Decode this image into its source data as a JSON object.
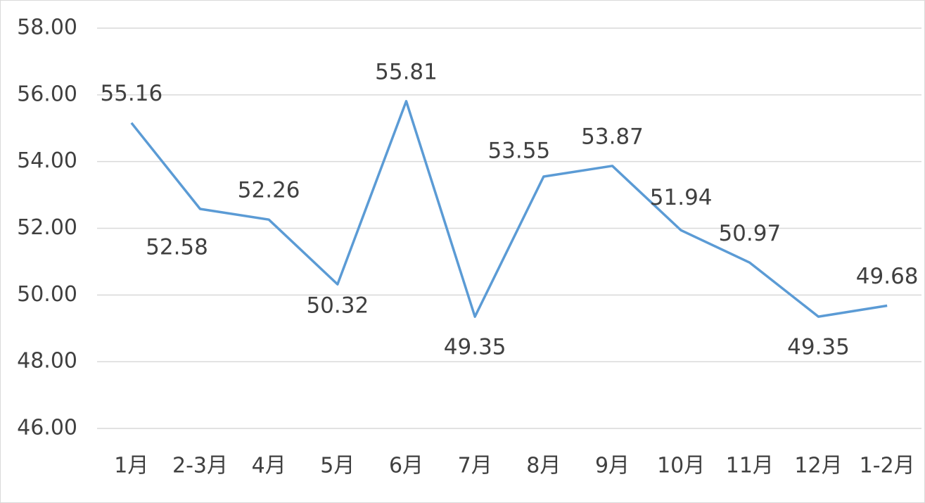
{
  "chart_data": {
    "type": "line",
    "categories": [
      "1月",
      "2-3月",
      "4月",
      "5月",
      "6月",
      "7月",
      "8月",
      "9月",
      "10月",
      "11月",
      "12月",
      "1-2月"
    ],
    "values": [
      55.16,
      52.58,
      52.26,
      50.32,
      55.81,
      49.35,
      53.55,
      53.87,
      51.94,
      50.97,
      49.35,
      49.68
    ],
    "color": "#5b9bd5",
    "ylim": [
      46,
      58
    ],
    "yticks": [
      {
        "value": 46,
        "label": "46.00"
      },
      {
        "value": 48,
        "label": "48.00"
      },
      {
        "value": 50,
        "label": "50.00"
      },
      {
        "value": 52,
        "label": "52.00"
      },
      {
        "value": 54,
        "label": "54.00"
      },
      {
        "value": 56,
        "label": "56.00"
      },
      {
        "value": 58,
        "label": "58.00"
      }
    ],
    "grid": true
  }
}
